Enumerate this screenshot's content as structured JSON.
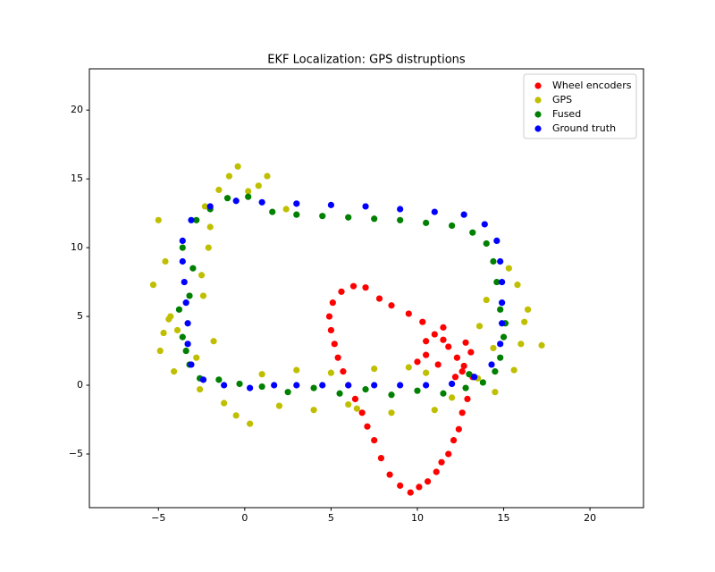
{
  "chart_data": {
    "type": "scatter",
    "title": "EKF Localization: GPS distruptions",
    "xlim": [
      -9,
      23.1
    ],
    "ylim": [
      -8.9,
      23
    ],
    "xticks": [
      {
        "value": -5,
        "label": "−5"
      },
      0,
      5,
      10,
      15,
      20
    ],
    "yticks": [
      {
        "value": -5,
        "label": "−5"
      },
      0,
      5,
      10,
      15,
      20
    ],
    "grid": false,
    "legend": "upper right",
    "series": [
      {
        "name": "Wheel encoders",
        "color": "#ff0000",
        "x": [
          10,
          10.5,
          11.2,
          11.8,
          12.3,
          12.8,
          13.1,
          12.6,
          12.2,
          11.5,
          11,
          10.3,
          9.5,
          8.5,
          7.8,
          7,
          6.3,
          5.6,
          5.1,
          4.9,
          5,
          5.2,
          5.4,
          5.7,
          6,
          6.4,
          6.8,
          7.1,
          7.5,
          7.9,
          8.4,
          9,
          9.6,
          10.1,
          10.6,
          11.1,
          11.4,
          11.8,
          12.1,
          12.4,
          12.6,
          12.9,
          13.2,
          12.7,
          11.5,
          10.5
        ],
        "y": [
          1.7,
          2.2,
          1.5,
          2.8,
          2,
          3.1,
          2.4,
          1,
          0.6,
          3.3,
          3.7,
          4.6,
          5.2,
          5.8,
          6.3,
          7.1,
          7.2,
          6.8,
          6,
          5,
          4,
          3,
          2,
          1,
          0,
          -1,
          -2,
          -3,
          -4,
          -5.3,
          -6.5,
          -7.3,
          -7.8,
          -7.4,
          -7,
          -6.3,
          -5.6,
          -5,
          -4,
          -3.2,
          -2,
          -1,
          0.6,
          1.4,
          4.2,
          3.2
        ]
      },
      {
        "name": "GPS",
        "color": "#bfbf00",
        "x": [
          -5.3,
          -5,
          -4.6,
          -4.3,
          -4.9,
          -4.1,
          -3.9,
          -2.8,
          -2.5,
          -2.1,
          -1.5,
          -0.9,
          -0.4,
          0.2,
          1.3,
          2.4,
          -2.3,
          -2.6,
          -4.4,
          -2.4,
          -2,
          -1.2,
          -0.5,
          0.3,
          1,
          2,
          3,
          4,
          5,
          6,
          7.5,
          8.5,
          9.5,
          11,
          12,
          13.5,
          14.5,
          15.6,
          16,
          16.4,
          17.2,
          15.8,
          14,
          13.6,
          15.3,
          16.2,
          14.4,
          -4.7,
          -1.8,
          0.8,
          6.5,
          10.5
        ],
        "y": [
          7.3,
          12,
          9,
          5,
          2.5,
          1,
          4,
          2,
          8,
          10,
          14.2,
          15.2,
          15.9,
          14.1,
          15.2,
          12.8,
          13,
          -0.3,
          4.8,
          6.5,
          11.5,
          -1.3,
          -2.2,
          -2.8,
          0.8,
          -1.5,
          1.1,
          -1.8,
          0.9,
          -1.4,
          1.2,
          -2,
          1.3,
          -1.8,
          -0.9,
          0.5,
          -0.5,
          1.1,
          3,
          5.5,
          2.9,
          7.3,
          6.2,
          4.3,
          8.5,
          4.6,
          2.7,
          3.8,
          3.2,
          14.5,
          -1.7,
          0.9
        ]
      },
      {
        "name": "Fused",
        "color": "#008000",
        "x": [
          1.6,
          3,
          4.5,
          6,
          7.5,
          9,
          10.5,
          12,
          13.2,
          14,
          14.4,
          14.6,
          14.8,
          15,
          14.8,
          14.5,
          13.8,
          12.8,
          11.5,
          10,
          8.5,
          7,
          5.5,
          4,
          2.5,
          1,
          -0.3,
          -1.5,
          -2.6,
          -3.2,
          -3.6,
          -3.8,
          -3.2,
          -3,
          -3.6,
          -2.8,
          -2,
          -1,
          0.2,
          13,
          15.1,
          -3.4
        ],
        "y": [
          12.6,
          12.4,
          12.3,
          12.2,
          12.1,
          12,
          11.8,
          11.6,
          11.1,
          10.3,
          9,
          7.5,
          5.5,
          3.5,
          2,
          1,
          0.2,
          -0.2,
          -0.6,
          -0.4,
          -0.7,
          -0.3,
          -0.6,
          -0.2,
          -0.5,
          -0.1,
          0.1,
          0.4,
          0.5,
          1.5,
          3.5,
          5.5,
          6.5,
          8.5,
          10,
          12,
          12.8,
          13.6,
          13.7,
          0.8,
          4.5,
          2.5
        ]
      },
      {
        "name": "Ground truth",
        "color": "#0000ff",
        "x": [
          1.7,
          3,
          4.5,
          6,
          7.5,
          9,
          10.5,
          12,
          13.3,
          14.3,
          14.8,
          14.9,
          14.9,
          14.9,
          14.8,
          14.6,
          13.9,
          12.7,
          11,
          9,
          7,
          5,
          3,
          1,
          -0.5,
          -2,
          -3.1,
          -3.6,
          -3.6,
          -3.5,
          -3.4,
          -3.3,
          -3.3,
          -3.1,
          -2.4,
          -1.2,
          0.3
        ],
        "y": [
          0,
          0,
          0,
          0,
          0,
          0,
          0,
          0.1,
          0.6,
          1.5,
          3,
          4.5,
          6,
          7.5,
          9,
          10.5,
          11.7,
          12.4,
          12.6,
          12.8,
          13,
          13.1,
          13.2,
          13.3,
          13.4,
          13,
          12,
          10.5,
          9,
          7.5,
          6,
          4.5,
          3,
          1.5,
          0.4,
          0,
          -0.2
        ]
      }
    ]
  }
}
